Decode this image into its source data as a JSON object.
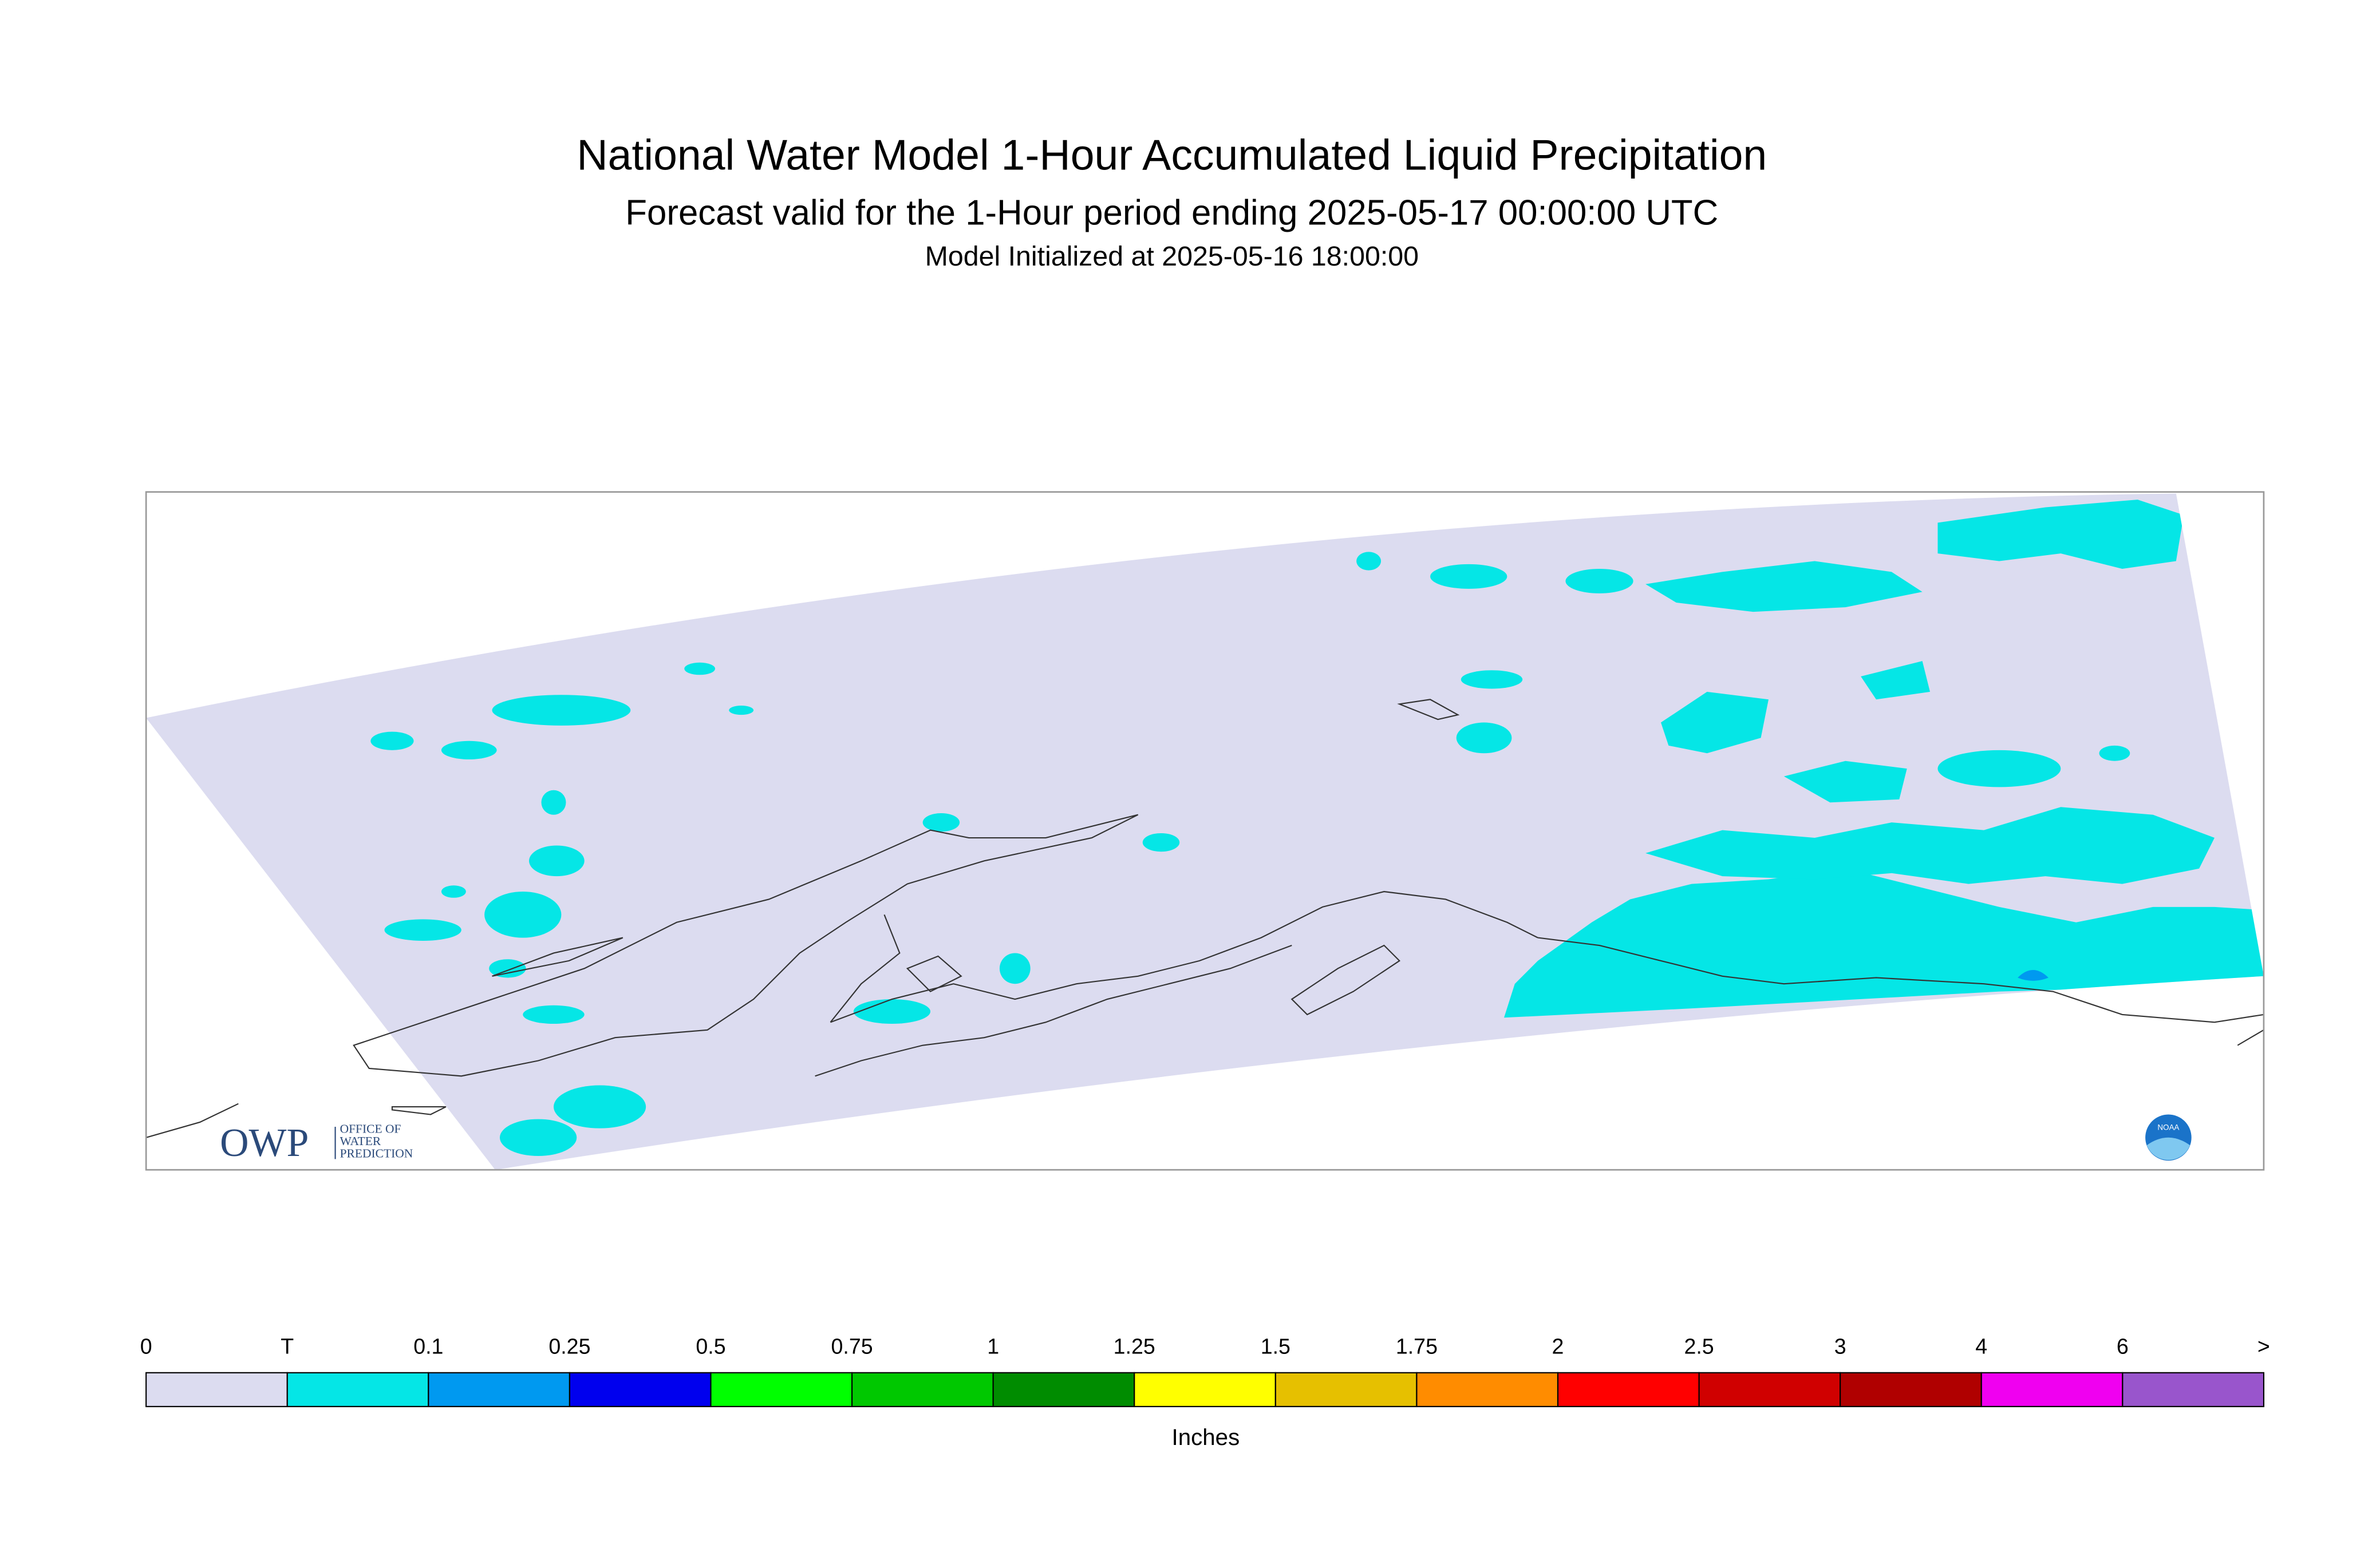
{
  "header": {
    "title": "National Water Model 1-Hour Accumulated Liquid Precipitation",
    "subtitle": "Forecast valid for the 1-Hour period ending 2025-05-17 00:00:00 UTC",
    "initialized": "Model Initialized at 2025-05-16 18:00:00"
  },
  "map": {
    "logo_left": {
      "text": "OWP",
      "subtext": [
        "OFFICE OF",
        "WATER",
        "PREDICTION"
      ]
    },
    "logo_right": "NOAA"
  },
  "legend": {
    "labels": [
      "0",
      "T",
      "0.1",
      "0.25",
      "0.5",
      "0.75",
      "1",
      "1.25",
      "1.5",
      "1.75",
      "2",
      "2.5",
      "3",
      "4",
      "6",
      ">"
    ],
    "colors": [
      "#dcdcf0",
      "#05e6e6",
      "#0099f0",
      "#0000ee",
      "#00ff00",
      "#00c800",
      "#008c00",
      "#ffff00",
      "#e6c000",
      "#ff8c00",
      "#ff0000",
      "#d00000",
      "#b00000",
      "#f000f0",
      "#9955cc"
    ],
    "unit": "Inches"
  }
}
